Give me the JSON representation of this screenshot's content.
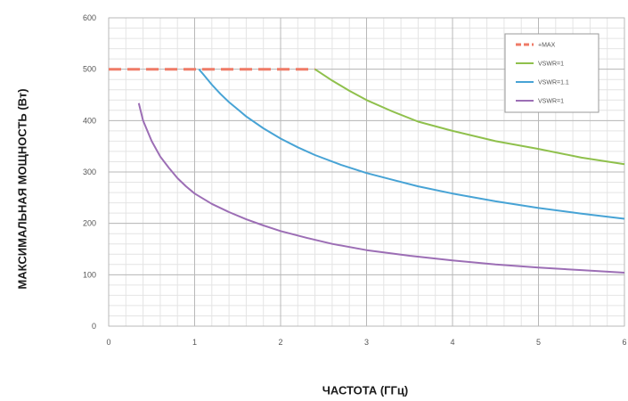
{
  "chart_data": {
    "type": "line",
    "xlabel": "ЧАСТОТА (ГГц)",
    "ylabel": "МАКСИМАЛЬНАЯ МОЩНОСТЬ (Вт)",
    "xlim": [
      0,
      6
    ],
    "ylim": [
      0,
      600
    ],
    "xticks": [
      0,
      1,
      2,
      3,
      4,
      5,
      6
    ],
    "yticks": [
      0,
      100,
      200,
      300,
      400,
      500,
      600
    ],
    "grid": true,
    "minor_grid": true,
    "legend_position": "top-right",
    "series": [
      {
        "name": "+MAX",
        "color": "#ef7b67",
        "dash": true,
        "x": [
          0.0,
          2.4
        ],
        "y": [
          500,
          500
        ]
      },
      {
        "name": "VSWR=1",
        "color": "#8fc04c",
        "dash": false,
        "x": [
          2.4,
          2.6,
          2.8,
          3.0,
          3.3,
          3.6,
          4.0,
          4.5,
          5.0,
          5.5,
          6.0
        ],
        "y": [
          500,
          478,
          458,
          440,
          418,
          398,
          380,
          360,
          345,
          328,
          315
        ]
      },
      {
        "name": "VSWR=1.1",
        "color": "#47a3d5",
        "dash": false,
        "x": [
          1.05,
          1.1,
          1.2,
          1.3,
          1.4,
          1.5,
          1.6,
          1.8,
          2.0,
          2.2,
          2.4,
          2.7,
          3.0,
          3.3,
          3.6,
          4.0,
          4.5,
          5.0,
          5.5,
          6.0
        ],
        "y": [
          500,
          490,
          470,
          452,
          436,
          422,
          408,
          385,
          365,
          348,
          333,
          314,
          298,
          285,
          272,
          258,
          243,
          230,
          219,
          209
        ]
      },
      {
        "name": "VSWR=1",
        "color": "#9c6eb5",
        "dash": false,
        "x": [
          0.35,
          0.4,
          0.5,
          0.6,
          0.7,
          0.8,
          0.9,
          1.0,
          1.2,
          1.4,
          1.6,
          1.8,
          2.0,
          2.3,
          2.6,
          3.0,
          3.5,
          4.0,
          4.5,
          5.0,
          5.5,
          6.0
        ],
        "y": [
          434,
          400,
          360,
          330,
          308,
          288,
          272,
          258,
          238,
          222,
          208,
          196,
          185,
          172,
          160,
          148,
          137,
          128,
          120,
          114,
          109,
          104
        ]
      }
    ]
  }
}
